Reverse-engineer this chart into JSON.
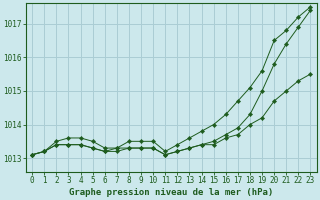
{
  "background_color": "#cce8ec",
  "grid_color": "#aacdd4",
  "line_color": "#1e5c1e",
  "marker_color": "#1e5c1e",
  "title": "Graphe pression niveau de la mer (hPa)",
  "xlim": [
    -0.5,
    23.5
  ],
  "ylim": [
    1012.6,
    1017.6
  ],
  "yticks": [
    1013,
    1014,
    1015,
    1016,
    1017
  ],
  "xticks": [
    0,
    1,
    2,
    3,
    4,
    5,
    6,
    7,
    8,
    9,
    10,
    11,
    12,
    13,
    14,
    15,
    16,
    17,
    18,
    19,
    20,
    21,
    22,
    23
  ],
  "line1_x": [
    0,
    1,
    2,
    3,
    4,
    5,
    6,
    7,
    8,
    9,
    10,
    11,
    12,
    13,
    14,
    15,
    16,
    17,
    18,
    19,
    20,
    21,
    22,
    23
  ],
  "line1_y": [
    1013.1,
    1013.2,
    1013.5,
    1013.6,
    1013.6,
    1013.5,
    1013.3,
    1013.3,
    1013.5,
    1013.5,
    1013.5,
    1013.2,
    1013.4,
    1013.6,
    1013.8,
    1014.0,
    1014.3,
    1014.7,
    1015.1,
    1015.6,
    1016.5,
    1016.8,
    1017.2,
    1017.5
  ],
  "line2_x": [
    0,
    1,
    2,
    3,
    4,
    5,
    6,
    7,
    8,
    9,
    10,
    11,
    12,
    13,
    14,
    15,
    16,
    17,
    18,
    19,
    20,
    21,
    22,
    23
  ],
  "line2_y": [
    1013.1,
    1013.2,
    1013.4,
    1013.4,
    1013.4,
    1013.3,
    1013.2,
    1013.3,
    1013.3,
    1013.3,
    1013.3,
    1013.1,
    1013.2,
    1013.3,
    1013.4,
    1013.5,
    1013.7,
    1013.9,
    1014.3,
    1015.0,
    1015.8,
    1016.4,
    1016.9,
    1017.4
  ],
  "line3_x": [
    0,
    1,
    2,
    3,
    4,
    5,
    6,
    7,
    8,
    9,
    10,
    11,
    12,
    13,
    14,
    15,
    16,
    17,
    18,
    19,
    20,
    21,
    22,
    23
  ],
  "line3_y": [
    1013.1,
    1013.2,
    1013.4,
    1013.4,
    1013.4,
    1013.3,
    1013.2,
    1013.2,
    1013.3,
    1013.3,
    1013.3,
    1013.1,
    1013.2,
    1013.3,
    1013.4,
    1013.4,
    1013.6,
    1013.7,
    1014.0,
    1014.2,
    1014.7,
    1015.0,
    1015.3,
    1015.5
  ],
  "title_fontsize": 6.5,
  "tick_fontsize": 5.5
}
